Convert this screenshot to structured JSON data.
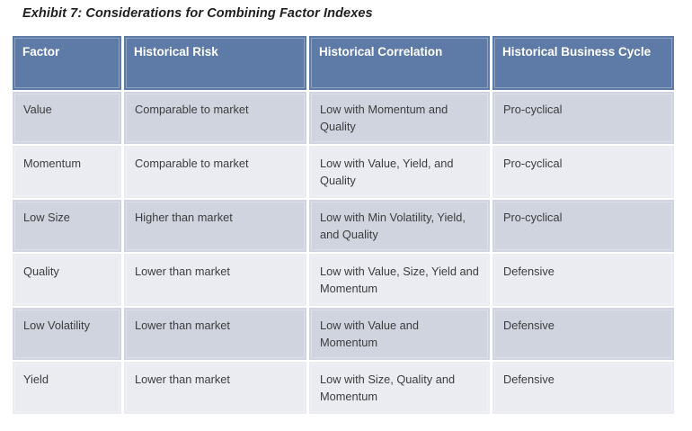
{
  "title": "Exhibit 7: Considerations for Combining Factor Indexes",
  "table": {
    "headers": {
      "factor": "Factor",
      "risk": "Historical Risk",
      "correlation": "Historical Correlation",
      "cycle": "Historical Business Cycle"
    },
    "rows": [
      {
        "factor": "Value",
        "risk": "Comparable to market",
        "correlation": "Low with Momentum  and Quality",
        "cycle": "Pro-cyclical"
      },
      {
        "factor": "Momentum",
        "risk": "Comparable to market",
        "correlation": "Low with Value, Yield, and Quality",
        "cycle": "Pro-cyclical"
      },
      {
        "factor": "Low Size",
        "risk": "Higher than market",
        "correlation": "Low with Min Volatility, Yield, and Quality",
        "cycle": "Pro-cyclical"
      },
      {
        "factor": "Quality",
        "risk": "Lower than market",
        "correlation": "Low with Value, Size, Yield and Momentum",
        "cycle": "Defensive"
      },
      {
        "factor": "Low Volatility",
        "risk": "Lower than market",
        "correlation": "Low with Value and Momentum",
        "cycle": "Defensive"
      },
      {
        "factor": "Yield",
        "risk": "Lower than market",
        "correlation": "Low with Size, Quality and Momentum",
        "cycle": "Defensive"
      }
    ]
  },
  "colors": {
    "header_bg": "#5e7ba7",
    "header_text": "#ffffff",
    "row_dark": "#d0d4df",
    "row_light": "#eaecf2",
    "body_text": "#3d3d3d"
  }
}
